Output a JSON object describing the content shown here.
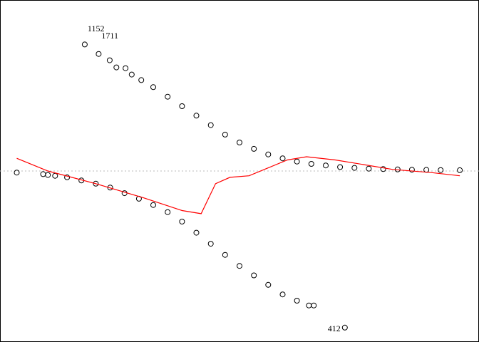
{
  "chart_data": {
    "type": "scatter",
    "title": "",
    "xlabel": "",
    "ylabel": "",
    "xlim": [
      0,
      1
    ],
    "ylim": [
      -1,
      1
    ],
    "grid": false,
    "reference_line": {
      "y": 0,
      "style": "dotted",
      "color": "#bbbbbb"
    },
    "series": [
      {
        "kind": "points",
        "segment": "upper",
        "color": "#000000",
        "x": [
          0.177,
          0.206,
          0.229,
          0.243,
          0.262,
          0.275,
          0.295,
          0.32,
          0.35,
          0.38,
          0.41,
          0.44,
          0.47,
          0.5,
          0.53,
          0.56,
          0.59,
          0.62,
          0.65,
          0.68,
          0.71,
          0.74,
          0.77,
          0.8,
          0.83,
          0.86,
          0.89,
          0.92,
          0.96
        ],
        "y": [
          0.8,
          0.74,
          0.7,
          0.655,
          0.65,
          0.61,
          0.575,
          0.53,
          0.47,
          0.41,
          0.35,
          0.29,
          0.23,
          0.18,
          0.14,
          0.105,
          0.08,
          0.06,
          0.045,
          0.035,
          0.025,
          0.02,
          0.015,
          0.012,
          0.01,
          0.008,
          0.007,
          0.006,
          0.005
        ]
      },
      {
        "kind": "points",
        "segment": "lower",
        "color": "#000000",
        "x": [
          0.035,
          0.09,
          0.1,
          0.115,
          0.14,
          0.17,
          0.2,
          0.23,
          0.26,
          0.29,
          0.32,
          0.35,
          0.38,
          0.41,
          0.44,
          0.47,
          0.5,
          0.53,
          0.56,
          0.59,
          0.62,
          0.645,
          0.655,
          0.72
        ],
        "y": [
          -0.01,
          -0.02,
          -0.025,
          -0.03,
          -0.04,
          -0.06,
          -0.08,
          -0.105,
          -0.14,
          -0.175,
          -0.215,
          -0.26,
          -0.32,
          -0.39,
          -0.46,
          -0.53,
          -0.6,
          -0.66,
          -0.72,
          -0.78,
          -0.82,
          -0.85,
          -0.85,
          -0.99
        ]
      },
      {
        "kind": "line",
        "segment": "fit",
        "color": "#ff0000",
        "x": [
          0.035,
          0.1,
          0.2,
          0.3,
          0.38,
          0.42,
          0.45,
          0.48,
          0.52,
          0.56,
          0.6,
          0.64,
          0.7,
          0.76,
          0.82,
          0.9,
          0.96
        ],
        "y": [
          0.08,
          0.0,
          -0.08,
          -0.17,
          -0.25,
          -0.27,
          -0.08,
          -0.04,
          -0.03,
          0.02,
          0.07,
          0.09,
          0.07,
          0.04,
          0.01,
          -0.01,
          -0.03
        ]
      }
    ],
    "annotations": [
      {
        "text": "1152",
        "x": 0.177,
        "y": 0.9
      },
      {
        "text": "1711",
        "x": 0.206,
        "y": 0.855
      },
      {
        "text": "412",
        "x": 0.72,
        "y": -0.99
      }
    ]
  }
}
